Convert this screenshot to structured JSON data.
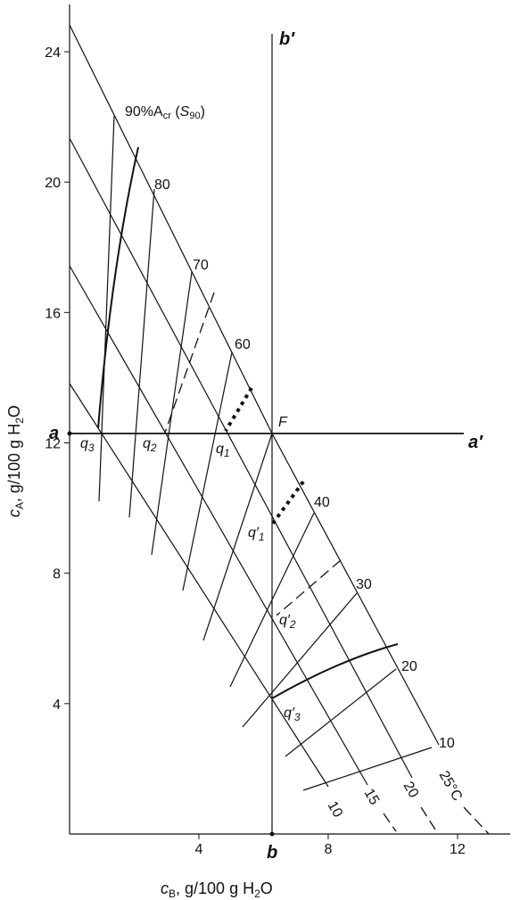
{
  "chart_data": {
    "type": "diagram",
    "x_label": [
      "c",
      "B",
      ", g/100 g H",
      "2",
      "O"
    ],
    "y_label": [
      "c",
      "A",
      ", g/100 g H",
      "2",
      "O"
    ],
    "xlim": [
      0,
      13.63
    ],
    "ylim": [
      0,
      25.45
    ],
    "xticks": [
      4,
      8,
      12
    ],
    "yticks": [
      4,
      8,
      12,
      16,
      20,
      24
    ],
    "annotations": {
      "b_prime": "b′",
      "b": "b",
      "a": "a",
      "a_prime": "a′",
      "F": "F",
      "q3": [
        "q",
        "3"
      ],
      "q2": [
        "q",
        "2"
      ],
      "q1": [
        "q",
        "1"
      ],
      "q1p": [
        "q′",
        "1"
      ],
      "q2p": [
        "q′",
        "2"
      ],
      "q3p": [
        "q′",
        "3"
      ],
      "s90": [
        "90%A",
        "cr",
        " (",
        "S",
        "90",
        ")"
      ],
      "isopleths": [
        "80",
        "70",
        "60",
        "40",
        "30",
        "20",
        "10"
      ],
      "temperatures": [
        "25°C",
        "20",
        "15",
        "10"
      ]
    }
  }
}
